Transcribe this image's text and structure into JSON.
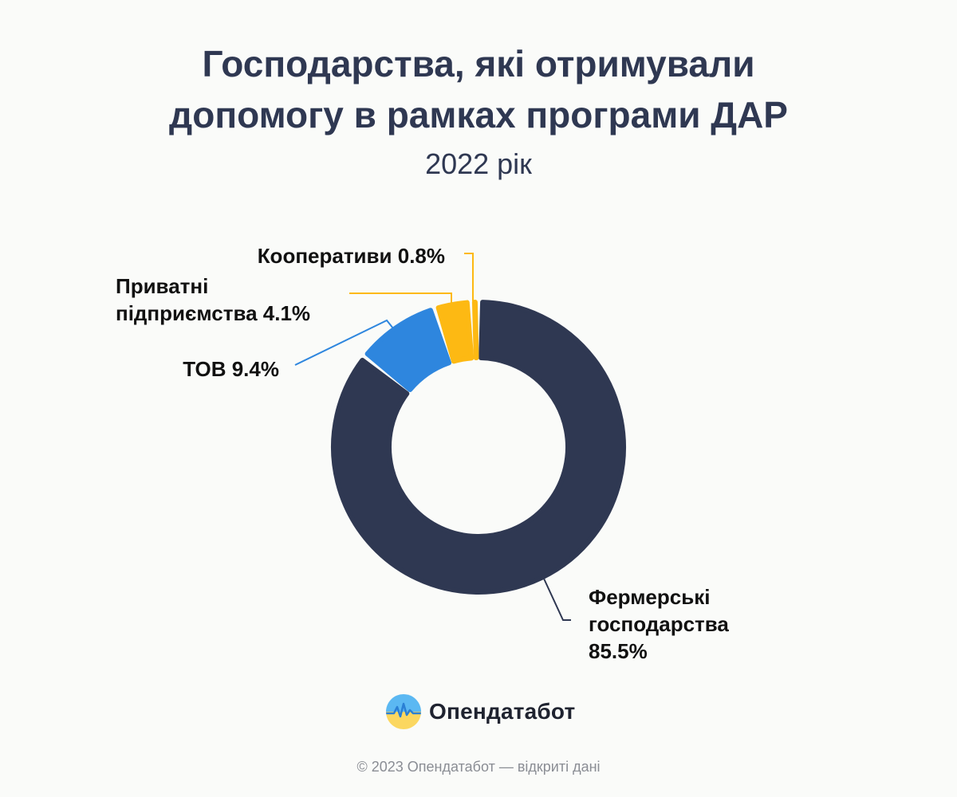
{
  "header": {
    "title_line1": "Господарства, які отримували",
    "title_line2": "допомогу в рамках програми ДАР",
    "subtitle": "2022 рік"
  },
  "chart_data": {
    "type": "pie",
    "donut": true,
    "title": "Господарства, які отримували допомогу в рамках програми ДАР",
    "subtitle": "2022 рік",
    "legend": "none",
    "slices": [
      {
        "label": [
          "Фермерські",
          "господарства",
          "85.5%"
        ],
        "value": 85.5,
        "color": "#2f3852"
      },
      {
        "label": [
          "ТОВ 9.4%"
        ],
        "value": 9.4,
        "color": "#2e86de"
      },
      {
        "label": [
          "Приватні",
          "підприємства 4.1%"
        ],
        "value": 4.1,
        "color": "#fdb913"
      },
      {
        "label": [
          "Кооперативи 0.8%"
        ],
        "value": 0.8,
        "color": "#fdb913"
      }
    ]
  },
  "brand": {
    "logo_icon": "opendatabot-logo-icon",
    "name": "Опендатабот"
  },
  "footer": {
    "text": "© 2023 Опендатабот — відкриті дані"
  }
}
